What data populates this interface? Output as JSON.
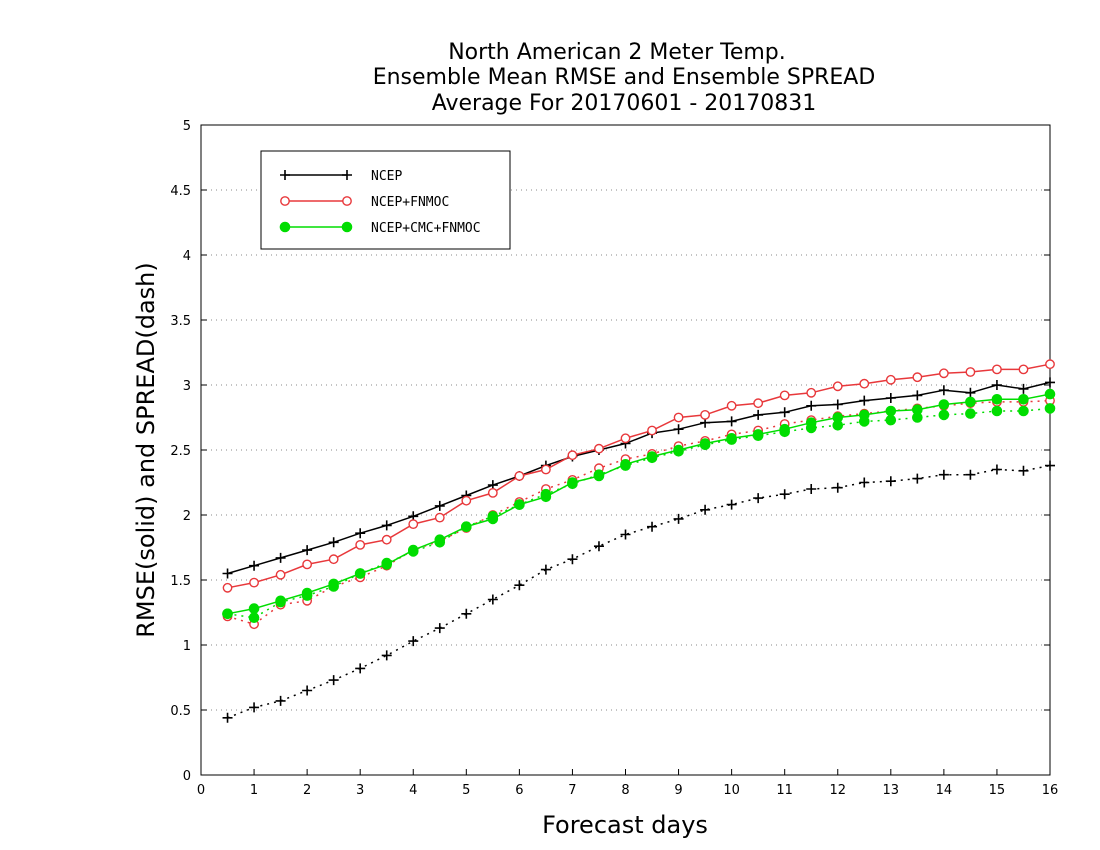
{
  "chart_data": {
    "type": "line",
    "title_lines": [
      "North American 2 Meter Temp.",
      "Ensemble Mean RMSE and Ensemble SPREAD",
      "Average For 20170601 - 20170831"
    ],
    "xlabel": "Forecast days",
    "ylabel": "RMSE(solid) and SPREAD(dash)",
    "xlim": [
      0,
      16
    ],
    "ylim": [
      0,
      5
    ],
    "x_ticks": [
      0,
      1,
      2,
      3,
      4,
      5,
      6,
      7,
      8,
      9,
      10,
      11,
      12,
      13,
      14,
      15,
      16
    ],
    "y_ticks": [
      0,
      0.5,
      1,
      1.5,
      2,
      2.5,
      3,
      3.5,
      4,
      4.5,
      5
    ],
    "y_tick_labels": [
      "0",
      "0.5",
      "1",
      "1.5",
      "2",
      "2.5",
      "3",
      "3.5",
      "4",
      "4.5",
      "5"
    ],
    "grid": "horizontal dotted",
    "legend_position": "top-left",
    "x": [
      0.5,
      1,
      1.5,
      2,
      2.5,
      3,
      3.5,
      4,
      4.5,
      5,
      5.5,
      6,
      6.5,
      7,
      7.5,
      8,
      8.5,
      9,
      9.5,
      10,
      10.5,
      11,
      11.5,
      12,
      12.5,
      13,
      13.5,
      14,
      14.5,
      15,
      15.5,
      16
    ],
    "series": [
      {
        "name": "NCEP",
        "color": "#000000",
        "marker": "plus",
        "rmse": [
          1.55,
          1.61,
          1.67,
          1.73,
          1.79,
          1.86,
          1.92,
          1.99,
          2.07,
          2.15,
          2.23,
          2.3,
          2.38,
          2.45,
          2.5,
          2.55,
          2.63,
          2.66,
          2.71,
          2.72,
          2.77,
          2.79,
          2.84,
          2.85,
          2.88,
          2.9,
          2.92,
          2.96,
          2.94,
          3.0,
          2.97,
          3.02
        ],
        "spread": [
          0.44,
          0.52,
          0.57,
          0.65,
          0.73,
          0.82,
          0.92,
          1.03,
          1.13,
          1.24,
          1.35,
          1.46,
          1.58,
          1.66,
          1.76,
          1.85,
          1.91,
          1.97,
          2.04,
          2.08,
          2.13,
          2.16,
          2.2,
          2.21,
          2.25,
          2.26,
          2.28,
          2.31,
          2.31,
          2.35,
          2.34,
          2.38
        ]
      },
      {
        "name": "NCEP+FNMOC",
        "color": "#e8383b",
        "marker": "open-circle",
        "rmse": [
          1.44,
          1.48,
          1.54,
          1.62,
          1.66,
          1.77,
          1.81,
          1.93,
          1.98,
          2.11,
          2.17,
          2.3,
          2.35,
          2.46,
          2.51,
          2.59,
          2.65,
          2.75,
          2.77,
          2.84,
          2.86,
          2.92,
          2.94,
          2.99,
          3.01,
          3.04,
          3.06,
          3.09,
          3.1,
          3.12,
          3.12,
          3.16
        ],
        "spread": [
          1.22,
          1.16,
          1.31,
          1.34,
          1.45,
          1.52,
          1.61,
          1.73,
          1.8,
          1.9,
          2.0,
          2.1,
          2.2,
          2.27,
          2.36,
          2.43,
          2.47,
          2.53,
          2.57,
          2.62,
          2.65,
          2.7,
          2.73,
          2.76,
          2.78,
          2.8,
          2.82,
          2.84,
          2.86,
          2.87,
          2.87,
          2.88
        ]
      },
      {
        "name": "NCEP+CMC+FNMOC",
        "color": "#00dd00",
        "marker": "filled-circle",
        "rmse": [
          1.24,
          1.28,
          1.34,
          1.4,
          1.47,
          1.55,
          1.62,
          1.73,
          1.81,
          1.91,
          1.97,
          2.08,
          2.14,
          2.25,
          2.3,
          2.39,
          2.45,
          2.5,
          2.55,
          2.59,
          2.62,
          2.66,
          2.71,
          2.75,
          2.77,
          2.8,
          2.81,
          2.85,
          2.87,
          2.89,
          2.89,
          2.93
        ],
        "spread": [
          1.24,
          1.21,
          1.33,
          1.38,
          1.45,
          1.55,
          1.63,
          1.72,
          1.79,
          1.91,
          1.99,
          2.08,
          2.16,
          2.24,
          2.31,
          2.38,
          2.44,
          2.49,
          2.54,
          2.58,
          2.61,
          2.64,
          2.67,
          2.69,
          2.72,
          2.73,
          2.75,
          2.77,
          2.78,
          2.8,
          2.8,
          2.82
        ]
      }
    ]
  }
}
